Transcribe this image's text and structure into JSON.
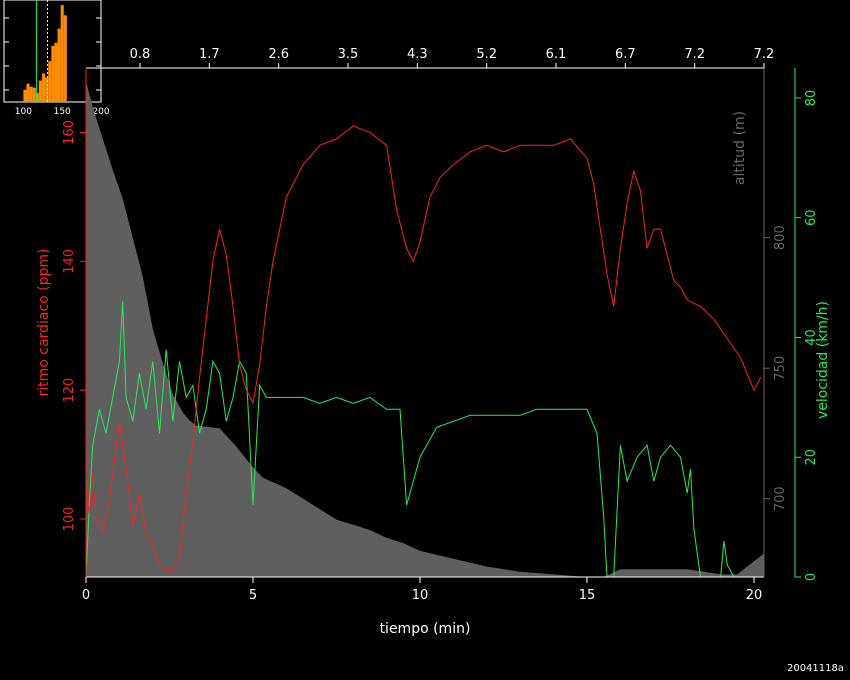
{
  "footer_code": "20041118a",
  "colors": {
    "heart_rate": "#ff2020",
    "speed": "#22ee55",
    "altitude_fill": "#5f5f5f",
    "altitude_label": "#666666",
    "axis": "#ffffff",
    "hist_bar": "#ff8c00"
  },
  "chart_data": {
    "type": "line",
    "xlabel": "tiempo (min)",
    "xlim": [
      0,
      20.3
    ],
    "x_ticks": [
      0,
      5,
      10,
      15,
      20
    ],
    "top_axis_ticks": [
      "0.8",
      "1.7",
      "2.6",
      "3.5",
      "4.3",
      "5.2",
      "6.1",
      "6.7",
      "7.2",
      "7.2"
    ],
    "left_axis": {
      "label": "ritmo cardiaco (ppm)",
      "ylim": [
        91,
        170
      ],
      "ticks": [
        100,
        120,
        140,
        160
      ]
    },
    "right_axis_altitude": {
      "label": "altitud (m)",
      "ylim": [
        670,
        865
      ],
      "ticks": [
        700,
        750,
        800
      ]
    },
    "right_axis_speed": {
      "label": "velocidad (km/h)",
      "ylim": [
        0,
        85
      ],
      "ticks": [
        0,
        20,
        40,
        60,
        80
      ]
    },
    "series": [
      {
        "key": "altitud",
        "axis": "altitude",
        "x": [
          0,
          0.2,
          0.5,
          0.8,
          1.1,
          1.4,
          1.7,
          2.0,
          2.3,
          2.6,
          2.9,
          3.1,
          3.3,
          4.0,
          4.5,
          5.0,
          5.3,
          6.0,
          6.5,
          7.0,
          7.5,
          8.0,
          8.5,
          9.0,
          9.5,
          10.0,
          11.0,
          12.0,
          13.0,
          14.0,
          15.0,
          15.5,
          16.0,
          17.0,
          18.0,
          18.5,
          19.0,
          19.5,
          20.0,
          20.3
        ],
        "y": [
          860,
          850,
          838,
          826,
          815,
          800,
          785,
          765,
          752,
          740,
          733,
          730,
          728,
          727,
          720,
          712,
          708,
          704,
          700,
          696,
          692,
          690,
          688,
          685,
          683,
          680,
          677,
          674,
          672,
          671,
          670,
          670,
          673,
          673,
          673,
          672,
          671,
          671,
          676,
          679
        ]
      },
      {
        "key": "ritmo",
        "axis": "left",
        "x": [
          0,
          0.1,
          0.2,
          0.3,
          0.5,
          0.7,
          0.9,
          1.0,
          1.2,
          1.4,
          1.6,
          1.8,
          2.0,
          2.2,
          2.4,
          2.6,
          2.8,
          3.0,
          3.2,
          3.4,
          3.6,
          3.8,
          4.0,
          4.2,
          4.4,
          4.6,
          4.8,
          5.0,
          5.2,
          5.4,
          5.6,
          6.0,
          6.5,
          7.0,
          7.5,
          8.0,
          8.5,
          9.0,
          9.3,
          9.6,
          9.8,
          10.0,
          10.3,
          10.6,
          11.0,
          11.5,
          12.0,
          12.5,
          13.0,
          13.5,
          14.0,
          14.5,
          15.0,
          15.2,
          15.4,
          15.6,
          15.8,
          16.0,
          16.2,
          16.4,
          16.6,
          16.8,
          17.0,
          17.2,
          17.4,
          17.6,
          17.8,
          18.0,
          18.4,
          18.8,
          19.2,
          19.6,
          20.0,
          20.2
        ],
        "y": [
          105,
          101,
          107,
          100,
          98,
          103,
          111,
          115,
          108,
          99,
          104,
          98,
          96,
          93,
          92,
          92,
          94,
          104,
          112,
          122,
          131,
          140,
          145,
          141,
          133,
          124,
          120,
          118,
          124,
          133,
          140,
          150,
          155,
          158,
          159,
          161,
          160,
          158,
          148,
          142,
          140,
          143,
          150,
          153,
          155,
          157,
          158,
          157,
          158,
          158,
          158,
          159,
          156,
          152,
          145,
          138,
          133,
          142,
          149,
          154,
          151,
          142,
          145,
          145,
          141,
          137,
          136,
          134,
          133,
          131,
          128,
          125,
          120,
          122
        ]
      },
      {
        "key": "velocidad",
        "axis": "speed",
        "x": [
          0,
          0.1,
          0.2,
          0.4,
          0.6,
          0.8,
          1.0,
          1.1,
          1.2,
          1.4,
          1.6,
          1.8,
          2.0,
          2.2,
          2.4,
          2.6,
          2.8,
          3.0,
          3.2,
          3.4,
          3.6,
          3.8,
          4.0,
          4.2,
          4.4,
          4.6,
          4.8,
          5.0,
          5.1,
          5.2,
          5.4,
          5.6,
          6.0,
          6.5,
          7.0,
          7.5,
          8.0,
          8.5,
          9.0,
          9.4,
          9.6,
          9.8,
          10.0,
          10.5,
          11.0,
          11.5,
          12.0,
          12.5,
          13.0,
          13.5,
          14.0,
          14.5,
          15.0,
          15.3,
          15.5,
          15.6,
          15.7,
          15.8,
          16.0,
          16.2,
          16.5,
          16.8,
          17.0,
          17.2,
          17.5,
          17.8,
          18.0,
          18.1,
          18.2,
          18.4,
          18.8,
          19.0,
          19.1,
          19.2,
          19.4,
          20.0,
          20.3
        ],
        "y": [
          0,
          12,
          22,
          28,
          24,
          30,
          36,
          46,
          30,
          26,
          34,
          28,
          36,
          24,
          38,
          26,
          36,
          30,
          32,
          24,
          28,
          36,
          34,
          26,
          30,
          36,
          34,
          12,
          22,
          32,
          30,
          30,
          30,
          30,
          29,
          30,
          29,
          30,
          28,
          28,
          12,
          16,
          20,
          25,
          26,
          27,
          27,
          27,
          27,
          28,
          28,
          28,
          28,
          24,
          10,
          0,
          0,
          0,
          22,
          16,
          20,
          22,
          16,
          20,
          22,
          20,
          14,
          18,
          8,
          0,
          0,
          0,
          6,
          2,
          0,
          0,
          0
        ]
      }
    ]
  },
  "histogram": {
    "x_ticks": [
      "100",
      "150",
      "200"
    ],
    "xlim": [
      75,
      200
    ],
    "bins_start": 100,
    "bin_width": 4,
    "counts": [
      0.12,
      0.18,
      0.15,
      0.14,
      0.09,
      0.21,
      0.28,
      0.24,
      0.4,
      0.55,
      0.58,
      0.72,
      0.95,
      0.85,
      0.0
    ],
    "marker_solid": 117,
    "marker_dashed": 131
  }
}
